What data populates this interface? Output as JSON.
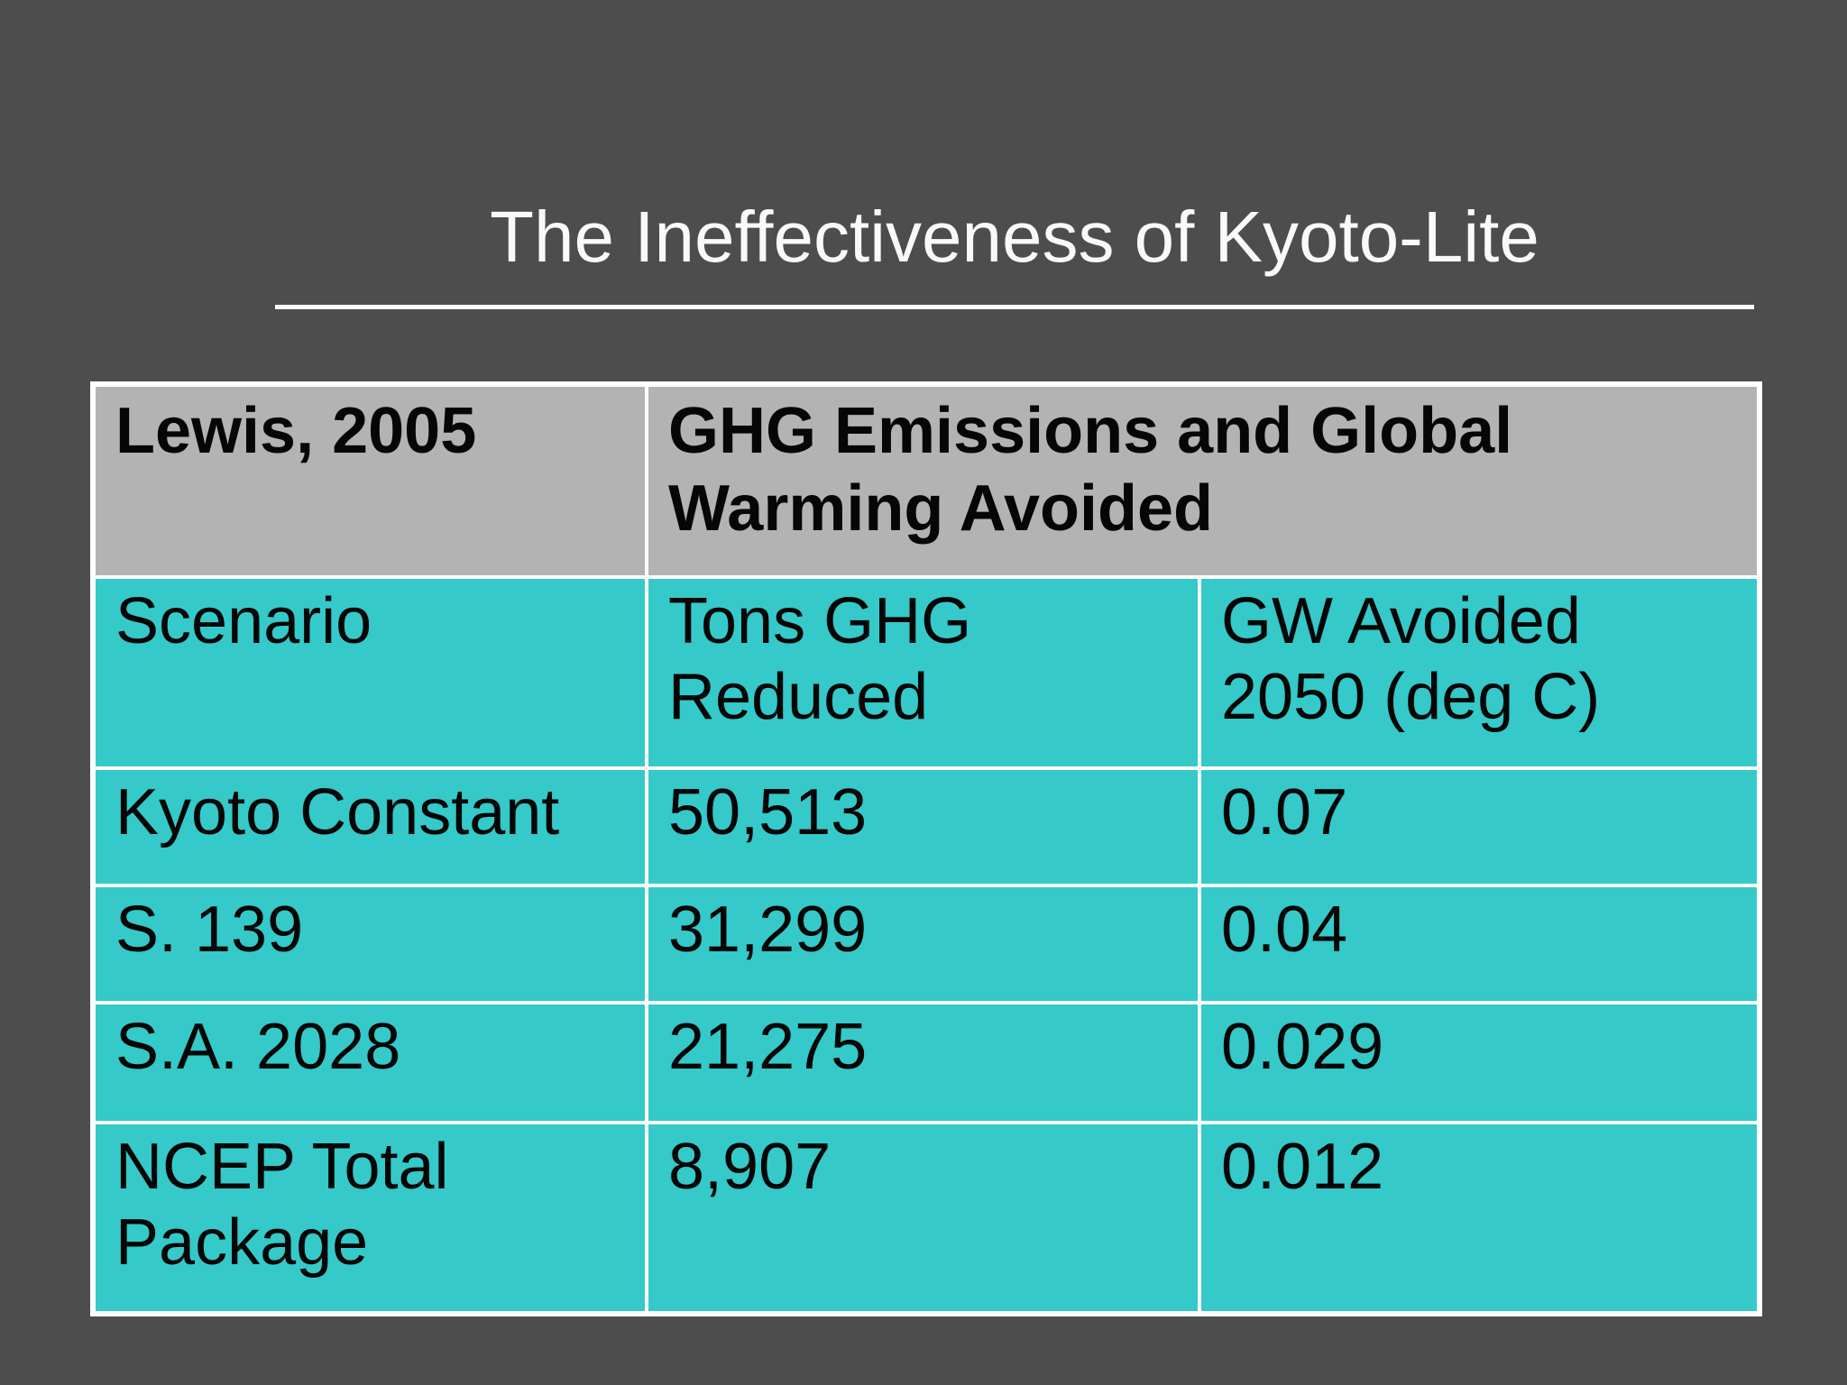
{
  "slide": {
    "title": "The Ineffectiveness of Kyoto-Lite",
    "background_color": "#4d4d4d",
    "title_color": "#f9f9f9",
    "table_header_bg": "#b3b3b3",
    "table_body_bg": "#35c9c9",
    "table_border_color": "#ffffff",
    "table_text_color": "#060606"
  },
  "table": {
    "header_row": {
      "source": "Lewis, 2005",
      "topic": "GHG Emissions and Global\nWarming Avoided"
    },
    "column_header_row": {
      "scenario": "Scenario",
      "tons_ghg_reduced": "Tons GHG\nReduced",
      "gw_avoided": "GW Avoided\n2050 (deg C)"
    },
    "data_rows": [
      {
        "c1": "Kyoto Constant",
        "c2": "50,513",
        "c3": "0.07"
      },
      {
        "c1": "S. 139",
        "c2": "31,299",
        "c3": "0.04"
      },
      {
        "c1": "S.A. 2028",
        "c2": "21,275",
        "c3": "0.029"
      },
      {
        "c1": "NCEP Total\nPackage",
        "c2": "8,907",
        "c3": "0.012"
      }
    ]
  },
  "chart_data": {
    "type": "table",
    "title": "The Ineffectiveness of Kyoto-Lite",
    "source_label": "Lewis, 2005",
    "group_header": "GHG Emissions and Global Warming Avoided",
    "columns": [
      "Scenario",
      "Tons GHG Reduced",
      "GW Avoided 2050 (deg C)"
    ],
    "rows": [
      [
        "Kyoto Constant",
        "50,513",
        "0.07"
      ],
      [
        "S. 139",
        "31,299",
        "0.04"
      ],
      [
        "S.A. 2028",
        "21,275",
        "0.029"
      ],
      [
        "NCEP Total Package",
        "8,907",
        "0.012"
      ]
    ]
  }
}
